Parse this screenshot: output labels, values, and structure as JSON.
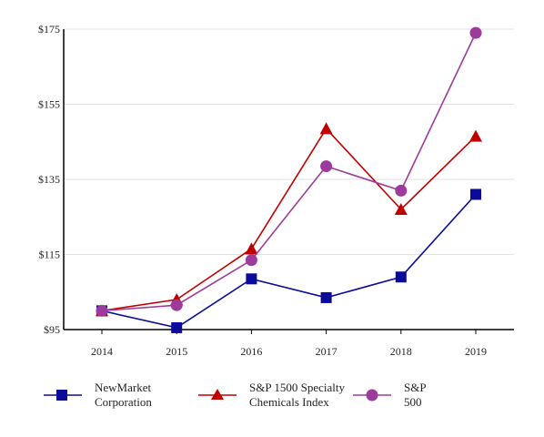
{
  "chart_data": {
    "type": "line",
    "categories": [
      "2014",
      "2015",
      "2016",
      "2017",
      "2018",
      "2019"
    ],
    "ylim": [
      95,
      175
    ],
    "yticks": [
      "$95",
      "$115",
      "$135",
      "$155",
      "$175"
    ],
    "ytick_values": [
      95,
      115,
      135,
      155,
      175
    ],
    "grid": "horizontal",
    "legend_position": "bottom",
    "series": [
      {
        "name_line1": "NewMarket",
        "name_line2": "Corporation",
        "marker": "square",
        "color": "#0a0a9b",
        "values": [
          100,
          95.5,
          108.5,
          103.5,
          109,
          131
        ]
      },
      {
        "name_line1": "S&P 1500 Specialty",
        "name_line2": "Chemicals Index",
        "marker": "triangle",
        "color": "#c00000",
        "values": [
          100,
          103,
          116.5,
          148.5,
          127,
          146.5
        ]
      },
      {
        "name_line1": "S&P",
        "name_line2": "500",
        "marker": "circle",
        "color": "#9c3b9c",
        "values": [
          100,
          101.5,
          113.5,
          138.5,
          132,
          174
        ]
      }
    ]
  }
}
